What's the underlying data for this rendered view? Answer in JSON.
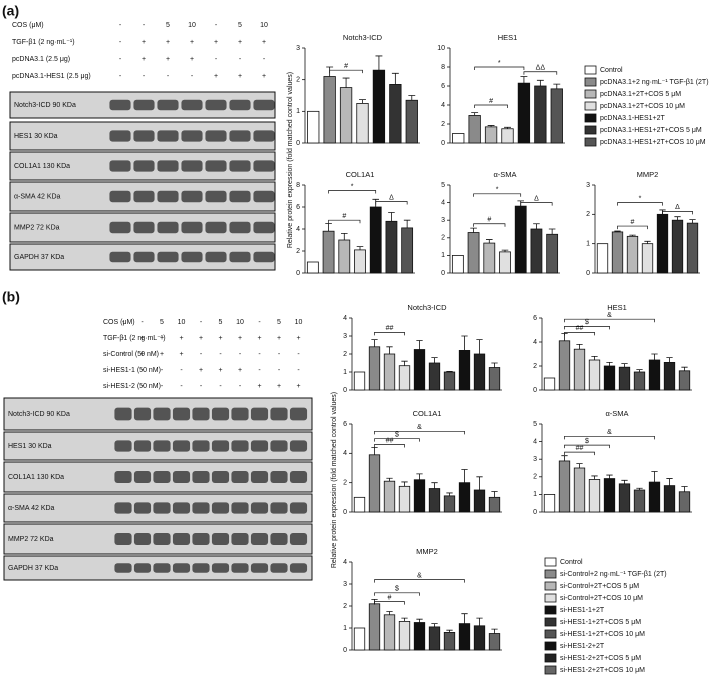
{
  "panels": [
    {
      "label": "(a)",
      "y_axis_label": "Relative protein expression (fold matched control values)",
      "treatments": [
        {
          "label": "COS (μM)",
          "cells": [
            "-",
            "-",
            "5",
            "10",
            "-",
            "5",
            "10"
          ]
        },
        {
          "label": "TGF-β1 (2 ng·mL⁻¹)",
          "cells": [
            "-",
            "+",
            "+",
            "+",
            "+",
            "+",
            "+"
          ]
        },
        {
          "label": "pcDNA3.1 (2.5 μg)",
          "cells": [
            "-",
            "+",
            "+",
            "+",
            "-",
            "-",
            "-"
          ]
        },
        {
          "label": "pcDNA3.1-HES1 (2.5 μg)",
          "cells": [
            "-",
            "-",
            "-",
            "-",
            "+",
            "+",
            "+"
          ]
        }
      ],
      "blots": [
        "Notch3-ICD 90 KDa",
        "HES1 30 KDa",
        "COL1A1 130 KDa",
        "α-SMA 42 KDa",
        "MMP2 72 KDa",
        "GAPDH 37 KDa"
      ],
      "legend": [
        {
          "name": "Control",
          "color": "#ffffff"
        },
        {
          "name": "pcDNA3.1+2 ng·mL⁻¹ TGF-β1 (2T)",
          "color": "#8a8a8a"
        },
        {
          "name": "pcDNA3.1+2T+COS 5 μM",
          "color": "#b8b8b8"
        },
        {
          "name": "pcDNA3.1+2T+COS 10 μM",
          "color": "#e0e0e0"
        },
        {
          "name": "pcDNA3.1-HES1+2T",
          "color": "#111111"
        },
        {
          "name": "pcDNA3.1-HES1+2T+COS 5 μM",
          "color": "#333333"
        },
        {
          "name": "pcDNA3.1-HES1+2T+COS 10 μM",
          "color": "#555555"
        }
      ],
      "chart_data": [
        {
          "type": "bar",
          "title": "Notch3-ICD",
          "ylim": [
            0,
            3
          ],
          "yticks": [
            0,
            1,
            2,
            3
          ],
          "values": [
            1,
            2.1,
            1.75,
            1.25,
            2.3,
            1.85,
            1.35
          ],
          "errors": [
            0,
            0.3,
            0.3,
            0.12,
            0.45,
            0.35,
            0.15
          ],
          "annotations": [
            {
              "text": "#",
              "bars": [
                1,
                3
              ],
              "y": 2.3
            }
          ]
        },
        {
          "type": "bar",
          "title": "HES1",
          "ylim": [
            0,
            10
          ],
          "yticks": [
            0,
            2,
            4,
            6,
            8,
            10
          ],
          "values": [
            1,
            2.9,
            1.7,
            1.5,
            6.3,
            6.0,
            5.7
          ],
          "errors": [
            0,
            0.3,
            0.15,
            0.15,
            0.7,
            0.6,
            0.5
          ],
          "annotations": [
            {
              "text": "#",
              "bars": [
                1,
                3
              ],
              "y": 4
            },
            {
              "text": "*",
              "bars": [
                1,
                4
              ],
              "y": 8
            },
            {
              "text": "ΔΔ",
              "bars": [
                4,
                6
              ],
              "y": 7.5
            }
          ]
        },
        {
          "type": "bar",
          "title": "COL1A1",
          "ylim": [
            0,
            8
          ],
          "yticks": [
            0,
            2,
            4,
            6,
            8
          ],
          "values": [
            1,
            3.8,
            3.0,
            2.1,
            6.0,
            4.7,
            4.1
          ],
          "errors": [
            0,
            0.7,
            0.6,
            0.3,
            0.7,
            0.8,
            0.7
          ],
          "annotations": [
            {
              "text": "#",
              "bars": [
                1,
                3
              ],
              "y": 4.8
            },
            {
              "text": "*",
              "bars": [
                1,
                4
              ],
              "y": 7.5
            },
            {
              "text": "Δ",
              "bars": [
                4,
                6
              ],
              "y": 6.5
            }
          ]
        },
        {
          "type": "bar",
          "title": "α-SMA",
          "ylim": [
            0,
            5
          ],
          "yticks": [
            0,
            1,
            2,
            3,
            4,
            5
          ],
          "values": [
            1,
            2.3,
            1.7,
            1.2,
            3.8,
            2.5,
            2.2
          ],
          "errors": [
            0,
            0.25,
            0.2,
            0.1,
            0.3,
            0.3,
            0.3
          ],
          "annotations": [
            {
              "text": "#",
              "bars": [
                1,
                3
              ],
              "y": 2.8
            },
            {
              "text": "*",
              "bars": [
                1,
                4
              ],
              "y": 4.5
            },
            {
              "text": "Δ",
              "bars": [
                4,
                6
              ],
              "y": 4
            }
          ]
        },
        {
          "type": "bar",
          "title": "MMP2",
          "ylim": [
            0,
            3
          ],
          "yticks": [
            0,
            1,
            2,
            3
          ],
          "values": [
            1,
            1.4,
            1.25,
            1.0,
            2.0,
            1.8,
            1.7
          ],
          "errors": [
            0,
            0.03,
            0.04,
            0.08,
            0.15,
            0.12,
            0.12
          ],
          "annotations": [
            {
              "text": "#",
              "bars": [
                1,
                3
              ],
              "y": 1.6
            },
            {
              "text": "*",
              "bars": [
                1,
                4
              ],
              "y": 2.4
            },
            {
              "text": "Δ",
              "bars": [
                4,
                6
              ],
              "y": 2.1
            }
          ]
        }
      ]
    },
    {
      "label": "(b)",
      "y_axis_label": "Relative protein expression (fold matched control values)",
      "treatments": [
        {
          "label": "COS (μM)",
          "cells": [
            "-",
            "-",
            "5",
            "10",
            "-",
            "5",
            "10",
            "-",
            "5",
            "10"
          ]
        },
        {
          "label": "TGF-β1 (2 ng·mL⁻¹)",
          "cells": [
            "-",
            "+",
            "+",
            "+",
            "+",
            "+",
            "+",
            "+",
            "+",
            "+"
          ]
        },
        {
          "label": "si-Control (50 nM)",
          "cells": [
            "-",
            "+",
            "+",
            "+",
            "-",
            "-",
            "-",
            "-",
            "-",
            "-"
          ]
        },
        {
          "label": "si-HES1-1 (50 nM)",
          "cells": [
            "-",
            "-",
            "-",
            "-",
            "+",
            "+",
            "+",
            "-",
            "-",
            "-"
          ]
        },
        {
          "label": "si-HES1-2 (50 nM)",
          "cells": [
            "-",
            "-",
            "-",
            "-",
            "-",
            "-",
            "-",
            "+",
            "+",
            "+"
          ]
        }
      ],
      "blots": [
        "Notch3-ICD 90 KDa",
        "HES1 30 KDa",
        "COL1A1 130 KDa",
        "α-SMA 42 KDa",
        "MMP2 72 KDa",
        "GAPDH 37 KDa"
      ],
      "legend": [
        {
          "name": "Control",
          "color": "#ffffff"
        },
        {
          "name": "si-Control+2 ng·mL⁻¹ TGF-β1 (2T)",
          "color": "#8a8a8a"
        },
        {
          "name": "si-Control+2T+COS 5 μM",
          "color": "#b8b8b8"
        },
        {
          "name": "si-Control+2T+COS 10 μM",
          "color": "#e0e0e0"
        },
        {
          "name": "si-HES1-1+2T",
          "color": "#111111"
        },
        {
          "name": "si-HES1-1+2T+COS 5 μM",
          "color": "#333333"
        },
        {
          "name": "si-HES1-1+2T+COS 10 μM",
          "color": "#555555"
        },
        {
          "name": "si-HES1-2+2T",
          "color": "#111111"
        },
        {
          "name": "si-HES1-2+2T+COS 5 μM",
          "color": "#222222"
        },
        {
          "name": "si-HES1-2+2T+COS 10 μM",
          "color": "#666666"
        }
      ],
      "chart_data": [
        {
          "type": "bar",
          "title": "Notch3-ICD",
          "ylim": [
            0,
            4
          ],
          "yticks": [
            0,
            1,
            2,
            3,
            4
          ],
          "values": [
            1,
            2.4,
            2.0,
            1.35,
            2.25,
            1.5,
            1.0,
            2.2,
            2.0,
            1.25
          ],
          "errors": [
            0,
            0.4,
            0.4,
            0.25,
            0.5,
            0.3,
            0.03,
            0.8,
            0.8,
            0.25
          ],
          "annotations": [
            {
              "text": "##",
              "bars": [
                1,
                3
              ],
              "y": 3.2
            }
          ]
        },
        {
          "type": "bar",
          "title": "HES1",
          "ylim": [
            0,
            6
          ],
          "yticks": [
            0,
            2,
            4,
            6
          ],
          "values": [
            1,
            4.1,
            3.4,
            2.5,
            2.0,
            1.9,
            1.5,
            2.5,
            2.3,
            1.6
          ],
          "errors": [
            0,
            0.6,
            0.4,
            0.3,
            0.3,
            0.3,
            0.2,
            0.5,
            0.4,
            0.3
          ],
          "annotations": [
            {
              "text": "##",
              "bars": [
                1,
                3
              ],
              "y": 4.8
            },
            {
              "text": "$",
              "bars": [
                1,
                4
              ],
              "y": 5.3
            },
            {
              "text": "&",
              "bars": [
                1,
                7
              ],
              "y": 5.9
            }
          ]
        },
        {
          "type": "bar",
          "title": "COL1A1",
          "ylim": [
            0,
            6
          ],
          "yticks": [
            0,
            2,
            4,
            6
          ],
          "values": [
            1,
            3.9,
            2.1,
            1.75,
            2.2,
            1.6,
            1.1,
            2.0,
            1.5,
            1.0
          ],
          "errors": [
            0,
            0.5,
            0.2,
            0.3,
            0.4,
            0.4,
            0.2,
            0.9,
            0.9,
            0.4
          ],
          "annotations": [
            {
              "text": "##",
              "bars": [
                1,
                3
              ],
              "y": 4.6
            },
            {
              "text": "$",
              "bars": [
                1,
                4
              ],
              "y": 5.0
            },
            {
              "text": "&",
              "bars": [
                1,
                7
              ],
              "y": 5.5
            }
          ]
        },
        {
          "type": "bar",
          "title": "α-SMA",
          "ylim": [
            0,
            5
          ],
          "yticks": [
            0,
            1,
            2,
            3,
            4,
            5
          ],
          "values": [
            1,
            2.9,
            2.5,
            1.85,
            1.9,
            1.6,
            1.25,
            1.7,
            1.5,
            1.15
          ],
          "errors": [
            0,
            0.3,
            0.25,
            0.2,
            0.2,
            0.2,
            0.1,
            0.6,
            0.4,
            0.3
          ],
          "annotations": [
            {
              "text": "##",
              "bars": [
                1,
                3
              ],
              "y": 3.4
            },
            {
              "text": "$",
              "bars": [
                1,
                4
              ],
              "y": 3.8
            },
            {
              "text": "&",
              "bars": [
                1,
                7
              ],
              "y": 4.3
            }
          ]
        },
        {
          "type": "bar",
          "title": "MMP2",
          "ylim": [
            0,
            4
          ],
          "yticks": [
            0,
            1,
            2,
            3,
            4
          ],
          "values": [
            1,
            2.1,
            1.6,
            1.3,
            1.25,
            1.05,
            0.8,
            1.2,
            1.1,
            0.75
          ],
          "errors": [
            0,
            0.2,
            0.15,
            0.15,
            0.15,
            0.15,
            0.1,
            0.45,
            0.35,
            0.2
          ],
          "annotations": [
            {
              "text": "#",
              "bars": [
                1,
                3
              ],
              "y": 2.2
            },
            {
              "text": "$",
              "bars": [
                1,
                4
              ],
              "y": 2.6
            },
            {
              "text": "&",
              "bars": [
                1,
                7
              ],
              "y": 3.2
            }
          ]
        }
      ]
    }
  ]
}
